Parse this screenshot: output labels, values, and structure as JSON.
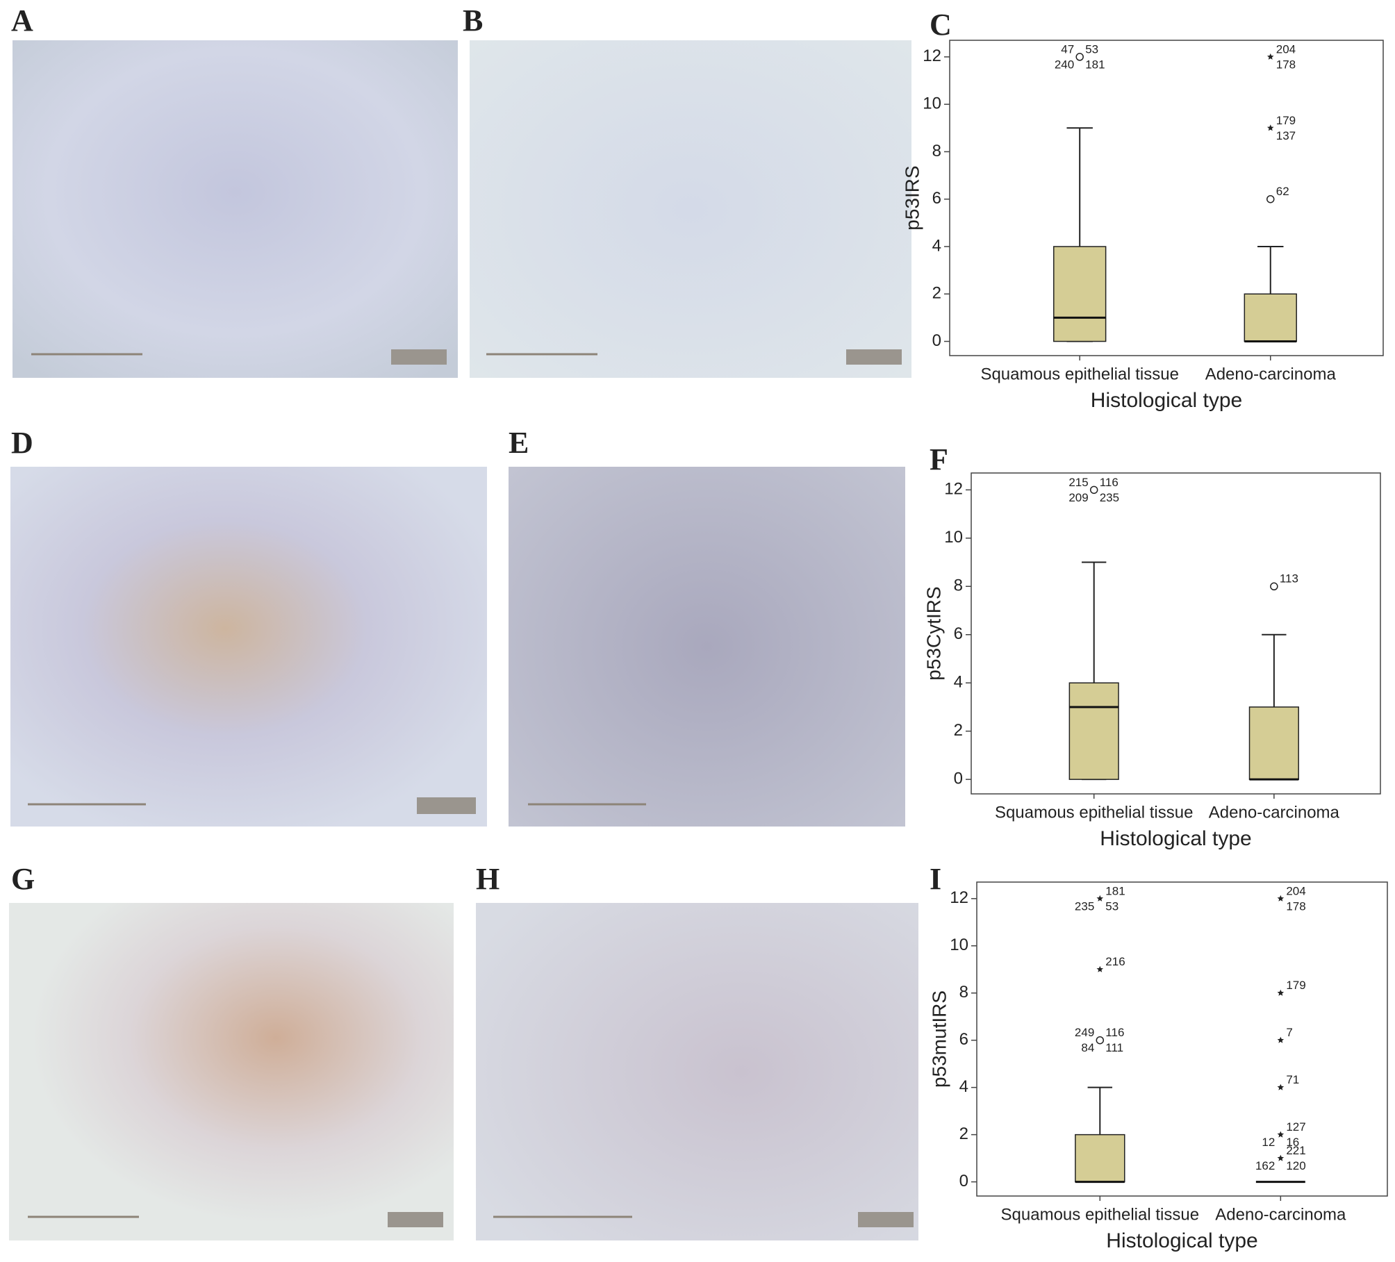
{
  "panel_labels": [
    "A",
    "B",
    "C",
    "D",
    "E",
    "F",
    "G",
    "H",
    "I"
  ],
  "chart_data": [
    {
      "type": "box",
      "ylabel": "p53IRS",
      "xlabel": "Histological type",
      "categories": [
        "Squamous epithelial tissue",
        "Adeno-carcinoma"
      ],
      "color": "#d5cd95",
      "ylim": [
        -0.6,
        12.7
      ],
      "yticks": [
        0,
        2,
        4,
        6,
        8,
        10,
        12
      ],
      "boxes": [
        {
          "min": 0,
          "q1": 0,
          "median": 1,
          "q3": 4,
          "max": 9,
          "outliers": [
            {
              "value": 12,
              "marker": "circle",
              "labels": [
                "53",
                "181",
                "240",
                "47"
              ]
            }
          ]
        },
        {
          "min": 0,
          "q1": 0,
          "median": 0,
          "q3": 2,
          "max": 4,
          "outliers": [
            {
              "value": 12,
              "marker": "star",
              "labels": [
                "204",
                "178"
              ]
            },
            {
              "value": 9,
              "marker": "star",
              "labels": [
                "179",
                "137"
              ]
            },
            {
              "value": 6,
              "marker": "circle",
              "labels": [
                "62"
              ]
            }
          ]
        }
      ]
    },
    {
      "type": "box",
      "ylabel": "p53CytIRS",
      "xlabel": "Histological type",
      "categories": [
        "Squamous epithelial tissue",
        "Adeno-carcinoma"
      ],
      "color": "#d5cd95",
      "ylim": [
        -0.6,
        12.7
      ],
      "yticks": [
        0,
        2,
        4,
        6,
        8,
        10,
        12
      ],
      "boxes": [
        {
          "min": 0,
          "q1": 0,
          "median": 3,
          "q3": 4,
          "max": 9,
          "outliers": [
            {
              "value": 12,
              "marker": "circle",
              "labels": [
                "116",
                "235",
                "209",
                "215"
              ]
            }
          ]
        },
        {
          "min": 0,
          "q1": 0,
          "median": 0,
          "q3": 3,
          "max": 6,
          "outliers": [
            {
              "value": 8,
              "marker": "circle",
              "labels": [
                "113"
              ]
            }
          ]
        }
      ]
    },
    {
      "type": "box",
      "ylabel": "p53mutIRS",
      "xlabel": "Histological type",
      "categories": [
        "Squamous epithelial tissue",
        "Adeno-carcinoma"
      ],
      "color": "#d5cd95",
      "ylim": [
        -0.6,
        12.7
      ],
      "yticks": [
        0,
        2,
        4,
        6,
        8,
        10,
        12
      ],
      "boxes": [
        {
          "min": 0,
          "q1": 0,
          "median": 0,
          "q3": 2,
          "max": 4,
          "outliers": [
            {
              "value": 12,
              "marker": "star",
              "labels": [
                "181",
                "53",
                "235"
              ]
            },
            {
              "value": 9,
              "marker": "star",
              "labels": [
                "216"
              ]
            },
            {
              "value": 6,
              "marker": "circle",
              "labels": [
                "116",
                "111",
                "84",
                "249"
              ]
            }
          ]
        },
        {
          "min": 0,
          "q1": 0,
          "median": 0,
          "q3": 0,
          "max": 0,
          "outliers": [
            {
              "value": 12,
              "marker": "star",
              "labels": [
                "204",
                "178"
              ]
            },
            {
              "value": 8,
              "marker": "star",
              "labels": [
                "179"
              ]
            },
            {
              "value": 6,
              "marker": "star",
              "labels": [
                "7"
              ]
            },
            {
              "value": 4,
              "marker": "star",
              "labels": [
                "71"
              ]
            },
            {
              "value": 2,
              "marker": "star",
              "labels": [
                "127",
                "16",
                "12"
              ]
            },
            {
              "value": 1,
              "marker": "star",
              "labels": [
                "221",
                "120",
                "162"
              ]
            }
          ]
        }
      ]
    }
  ]
}
